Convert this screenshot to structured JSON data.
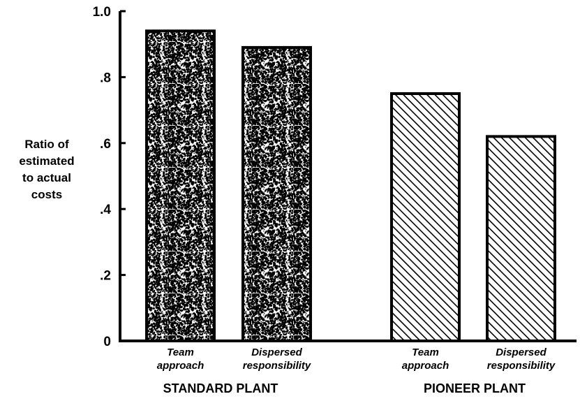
{
  "chart_data": {
    "type": "bar",
    "ylabel": "Ratio of estimated to actual costs",
    "ylabel_lines": [
      "Ratio of",
      "estimated",
      "to actual",
      "costs"
    ],
    "ylim": [
      0,
      1.0
    ],
    "yticks": [
      {
        "value": 0,
        "label": "0"
      },
      {
        "value": 0.2,
        "label": ".2"
      },
      {
        "value": 0.4,
        "label": ".4"
      },
      {
        "value": 0.6,
        "label": ".6"
      },
      {
        "value": 0.8,
        "label": ".8"
      },
      {
        "value": 1.0,
        "label": "1.0"
      }
    ],
    "grid": false,
    "legend": "none",
    "groups": [
      {
        "name": "STANDARD PLANT",
        "pattern": "stipple",
        "bars": [
          {
            "category": "Team approach",
            "label_lines": [
              "Team",
              "approach"
            ],
            "value": 0.94
          },
          {
            "category": "Dispersed responsibility",
            "label_lines": [
              "Dispersed",
              "responsibility"
            ],
            "value": 0.89
          }
        ]
      },
      {
        "name": "PIONEER PLANT",
        "pattern": "hatch",
        "bars": [
          {
            "category": "Team approach",
            "label_lines": [
              "Team",
              "approach"
            ],
            "value": 0.75
          },
          {
            "category": "Dispersed responsibility",
            "label_lines": [
              "Dispersed",
              "responsibility"
            ],
            "value": 0.62
          }
        ]
      }
    ],
    "colors": {
      "ink": "#000000",
      "background": "#ffffff"
    }
  }
}
